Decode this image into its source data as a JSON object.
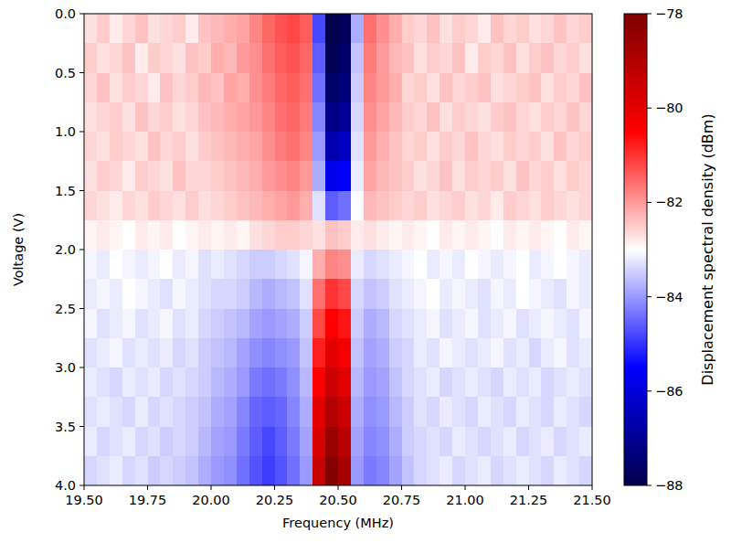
{
  "chart_data": {
    "type": "heatmap",
    "x_label": "Frequency (MHz)",
    "y_label": "Voltage (V)",
    "xlim": [
      19.5,
      21.5
    ],
    "ylim": [
      0,
      4
    ],
    "xticks": [
      {
        "value": 19.5,
        "label": "19.50"
      },
      {
        "value": 19.75,
        "label": "19.75"
      },
      {
        "value": 20.0,
        "label": "20.00"
      },
      {
        "value": 20.25,
        "label": "20.25"
      },
      {
        "value": 20.5,
        "label": "20.50"
      },
      {
        "value": 20.75,
        "label": "20.75"
      },
      {
        "value": 21.0,
        "label": "21.00"
      },
      {
        "value": 21.25,
        "label": "21.25"
      },
      {
        "value": 21.5,
        "label": "21.50"
      }
    ],
    "yticks": [
      {
        "value": 0,
        "label": "0.0"
      },
      {
        "value": 0.5,
        "label": "0.5"
      },
      {
        "value": 1,
        "label": "1.0"
      },
      {
        "value": 1.5,
        "label": "1.5"
      },
      {
        "value": 2,
        "label": "2.0"
      },
      {
        "value": 2.5,
        "label": "2.5"
      },
      {
        "value": 3,
        "label": "3.0"
      },
      {
        "value": 3.5,
        "label": "3.5"
      },
      {
        "value": 4,
        "label": "4.0"
      }
    ],
    "colorbar": {
      "label": "Displacement spectral density (dBm)",
      "range": [
        -88,
        -78
      ],
      "ticks": [
        {
          "value": -78,
          "label": "−78"
        },
        {
          "value": -80,
          "label": "−80"
        },
        {
          "value": -82,
          "label": "−82"
        },
        {
          "value": -84,
          "label": "−84"
        },
        {
          "value": -86,
          "label": "−86"
        },
        {
          "value": -88,
          "label": "−88"
        }
      ]
    },
    "x": [
      19.525,
      19.575,
      19.625,
      19.675,
      19.725,
      19.775,
      19.825,
      19.875,
      19.925,
      19.975,
      20.025,
      20.075,
      20.125,
      20.175,
      20.225,
      20.275,
      20.325,
      20.375,
      20.425,
      20.475,
      20.525,
      20.575,
      20.625,
      20.675,
      20.725,
      20.775,
      20.825,
      20.875,
      20.925,
      20.975,
      21.025,
      21.075,
      21.125,
      21.175,
      21.225,
      21.275,
      21.325,
      21.375,
      21.425,
      21.475
    ],
    "y": [
      0.125,
      0.375,
      0.625,
      0.875,
      1.125,
      1.375,
      1.625,
      1.875,
      2.125,
      2.375,
      2.625,
      2.875,
      3.125,
      3.375,
      3.625,
      3.875
    ],
    "values": [
      [
        -82.7,
        -82.5,
        -82.8,
        -82.6,
        -82.4,
        -82.7,
        -82.6,
        -82.5,
        -82.8,
        -82.4,
        -82.3,
        -82.2,
        -82.1,
        -81.8,
        -81.5,
        -81.3,
        -81.2,
        -81.4,
        -84.8,
        -88.0,
        -87.8,
        -83.8,
        -81.6,
        -81.9,
        -82.2,
        -82.5,
        -82.6,
        -82.4,
        -82.7,
        -82.5,
        -82.6,
        -82.8,
        -82.4,
        -82.6,
        -82.5,
        -82.7,
        -82.6,
        -82.4,
        -82.6,
        -82.5
      ],
      [
        -82.5,
        -82.7,
        -82.6,
        -82.4,
        -82.8,
        -82.5,
        -82.6,
        -82.7,
        -82.4,
        -82.5,
        -82.2,
        -82.3,
        -82.0,
        -81.9,
        -81.6,
        -81.4,
        -81.3,
        -81.5,
        -84.6,
        -87.9,
        -87.6,
        -83.6,
        -81.7,
        -82.0,
        -82.3,
        -82.4,
        -82.7,
        -82.5,
        -82.6,
        -82.4,
        -82.8,
        -82.5,
        -82.6,
        -82.4,
        -82.7,
        -82.5,
        -82.4,
        -82.6,
        -82.5,
        -82.7
      ],
      [
        -82.6,
        -82.4,
        -82.7,
        -82.5,
        -82.6,
        -82.8,
        -82.4,
        -82.6,
        -82.5,
        -82.3,
        -82.4,
        -82.1,
        -82.2,
        -81.9,
        -81.7,
        -81.5,
        -81.4,
        -81.6,
        -84.4,
        -87.6,
        -87.4,
        -83.5,
        -81.8,
        -82.0,
        -82.2,
        -82.6,
        -82.5,
        -82.7,
        -82.4,
        -82.6,
        -82.5,
        -82.4,
        -82.7,
        -82.6,
        -82.5,
        -82.4,
        -82.7,
        -82.5,
        -82.6,
        -82.4
      ],
      [
        -82.7,
        -82.6,
        -82.5,
        -82.7,
        -82.4,
        -82.6,
        -82.5,
        -82.7,
        -82.6,
        -82.4,
        -82.3,
        -82.2,
        -82.1,
        -82.0,
        -81.8,
        -81.6,
        -81.5,
        -81.7,
        -84.2,
        -87.2,
        -87.0,
        -83.4,
        -81.9,
        -82.1,
        -82.3,
        -82.5,
        -82.6,
        -82.4,
        -82.7,
        -82.5,
        -82.6,
        -82.7,
        -82.5,
        -82.4,
        -82.6,
        -82.7,
        -82.5,
        -82.6,
        -82.4,
        -82.6
      ],
      [
        -82.6,
        -82.7,
        -82.5,
        -82.6,
        -82.7,
        -82.4,
        -82.6,
        -82.5,
        -82.7,
        -82.5,
        -82.4,
        -82.3,
        -82.2,
        -82.1,
        -81.9,
        -81.7,
        -81.6,
        -81.8,
        -84.0,
        -86.6,
        -86.4,
        -83.3,
        -82.0,
        -82.2,
        -82.4,
        -82.6,
        -82.5,
        -82.7,
        -82.5,
        -82.6,
        -82.4,
        -82.6,
        -82.7,
        -82.5,
        -82.6,
        -82.5,
        -82.7,
        -82.4,
        -82.6,
        -82.5
      ],
      [
        -82.7,
        -82.5,
        -82.6,
        -82.8,
        -82.5,
        -82.6,
        -82.7,
        -82.4,
        -82.6,
        -82.6,
        -82.5,
        -82.4,
        -82.3,
        -82.2,
        -82.0,
        -81.9,
        -81.8,
        -82.0,
        -83.8,
        -85.8,
        -85.6,
        -83.2,
        -82.1,
        -82.3,
        -82.4,
        -82.5,
        -82.7,
        -82.6,
        -82.4,
        -82.7,
        -82.5,
        -82.6,
        -82.5,
        -82.7,
        -82.4,
        -82.6,
        -82.5,
        -82.7,
        -82.5,
        -82.6
      ],
      [
        -82.6,
        -82.7,
        -82.8,
        -82.6,
        -82.7,
        -82.5,
        -82.6,
        -82.7,
        -82.5,
        -82.7,
        -82.6,
        -82.5,
        -82.4,
        -82.3,
        -82.2,
        -82.1,
        -82.0,
        -82.2,
        -83.3,
        -84.6,
        -84.4,
        -83.0,
        -82.3,
        -82.4,
        -82.5,
        -82.6,
        -82.5,
        -82.7,
        -82.6,
        -82.5,
        -82.7,
        -82.6,
        -82.8,
        -82.5,
        -82.6,
        -82.7,
        -82.5,
        -82.6,
        -82.7,
        -82.6
      ],
      [
        -82.9,
        -82.8,
        -82.9,
        -83.0,
        -82.8,
        -82.9,
        -82.8,
        -83.0,
        -82.9,
        -82.8,
        -82.9,
        -82.8,
        -82.9,
        -82.7,
        -82.6,
        -82.5,
        -82.5,
        -82.6,
        -82.7,
        -82.4,
        -82.5,
        -82.8,
        -82.7,
        -82.8,
        -82.9,
        -82.8,
        -82.9,
        -83.0,
        -82.8,
        -82.9,
        -82.8,
        -82.9,
        -83.0,
        -82.8,
        -82.9,
        -82.8,
        -82.9,
        -83.0,
        -82.8,
        -82.9
      ],
      [
        -83.1,
        -83.2,
        -83.0,
        -83.1,
        -83.2,
        -83.1,
        -83.0,
        -83.2,
        -83.1,
        -83.3,
        -83.2,
        -83.3,
        -83.4,
        -83.5,
        -83.5,
        -83.4,
        -83.3,
        -83.1,
        -82.2,
        -81.8,
        -81.9,
        -83.2,
        -83.4,
        -83.3,
        -83.2,
        -83.1,
        -83.0,
        -83.2,
        -83.1,
        -83.2,
        -83.0,
        -83.1,
        -83.2,
        -83.1,
        -83.0,
        -83.2,
        -83.1,
        -83.0,
        -83.1,
        -83.2
      ],
      [
        -83.2,
        -83.1,
        -83.2,
        -83.0,
        -83.1,
        -83.2,
        -83.3,
        -83.1,
        -83.2,
        -83.3,
        -83.4,
        -83.4,
        -83.5,
        -83.7,
        -83.8,
        -83.7,
        -83.6,
        -83.3,
        -81.6,
        -81.0,
        -81.2,
        -83.4,
        -83.6,
        -83.5,
        -83.3,
        -83.2,
        -83.1,
        -83.0,
        -83.2,
        -83.1,
        -83.2,
        -83.3,
        -83.1,
        -83.2,
        -83.0,
        -83.1,
        -83.2,
        -83.3,
        -83.1,
        -83.2
      ],
      [
        -83.1,
        -83.3,
        -83.2,
        -83.1,
        -83.3,
        -83.2,
        -83.1,
        -83.3,
        -83.2,
        -83.4,
        -83.5,
        -83.6,
        -83.7,
        -83.9,
        -84.0,
        -83.9,
        -83.8,
        -83.5,
        -81.2,
        -80.5,
        -80.7,
        -83.5,
        -83.8,
        -83.7,
        -83.4,
        -83.3,
        -83.2,
        -83.1,
        -83.3,
        -83.2,
        -83.1,
        -83.3,
        -83.2,
        -83.1,
        -83.3,
        -83.2,
        -83.1,
        -83.2,
        -83.3,
        -83.1
      ],
      [
        -83.3,
        -83.2,
        -83.1,
        -83.3,
        -83.2,
        -83.3,
        -83.2,
        -83.4,
        -83.3,
        -83.5,
        -83.6,
        -83.7,
        -83.9,
        -84.1,
        -84.2,
        -84.1,
        -84.0,
        -83.6,
        -80.8,
        -80.0,
        -80.3,
        -83.6,
        -83.9,
        -83.8,
        -83.5,
        -83.4,
        -83.2,
        -83.3,
        -83.1,
        -83.2,
        -83.3,
        -83.2,
        -83.1,
        -83.3,
        -83.2,
        -83.4,
        -83.2,
        -83.1,
        -83.3,
        -83.2
      ],
      [
        -83.2,
        -83.3,
        -83.4,
        -83.2,
        -83.3,
        -83.2,
        -83.4,
        -83.3,
        -83.4,
        -83.5,
        -83.7,
        -83.8,
        -84.0,
        -84.3,
        -84.4,
        -84.3,
        -84.1,
        -83.7,
        -80.4,
        -79.5,
        -79.9,
        -83.7,
        -84.0,
        -83.9,
        -83.6,
        -83.4,
        -83.3,
        -83.2,
        -83.4,
        -83.3,
        -83.2,
        -83.3,
        -83.4,
        -83.2,
        -83.3,
        -83.2,
        -83.4,
        -83.3,
        -83.2,
        -83.3
      ],
      [
        -83.3,
        -83.2,
        -83.3,
        -83.4,
        -83.2,
        -83.4,
        -83.3,
        -83.4,
        -83.5,
        -83.6,
        -83.8,
        -83.9,
        -84.2,
        -84.5,
        -84.6,
        -84.5,
        -84.2,
        -83.8,
        -80.0,
        -79.0,
        -79.5,
        -83.8,
        -84.1,
        -84.0,
        -83.7,
        -83.5,
        -83.3,
        -83.4,
        -83.2,
        -83.3,
        -83.4,
        -83.2,
        -83.3,
        -83.4,
        -83.2,
        -83.3,
        -83.4,
        -83.2,
        -83.3,
        -83.4
      ],
      [
        -83.2,
        -83.4,
        -83.3,
        -83.2,
        -83.4,
        -83.3,
        -83.5,
        -83.4,
        -83.5,
        -83.7,
        -83.9,
        -84.0,
        -84.3,
        -84.6,
        -84.8,
        -84.6,
        -84.3,
        -83.9,
        -79.7,
        -78.5,
        -79.1,
        -83.9,
        -84.2,
        -84.1,
        -83.8,
        -83.5,
        -83.4,
        -83.3,
        -83.4,
        -83.2,
        -83.3,
        -83.4,
        -83.3,
        -83.2,
        -83.4,
        -83.3,
        -83.2,
        -83.4,
        -83.3,
        -83.2
      ],
      [
        -83.4,
        -83.3,
        -83.2,
        -83.4,
        -83.3,
        -83.5,
        -83.4,
        -83.5,
        -83.6,
        -83.8,
        -84.0,
        -84.1,
        -84.4,
        -84.7,
        -84.9,
        -84.7,
        -84.4,
        -84.0,
        -79.4,
        -78.1,
        -78.8,
        -84.0,
        -84.3,
        -84.2,
        -83.9,
        -83.6,
        -83.4,
        -83.3,
        -83.2,
        -83.4,
        -83.3,
        -83.2,
        -83.4,
        -83.3,
        -83.2,
        -83.3,
        -83.4,
        -83.2,
        -83.3,
        -83.4
      ]
    ]
  }
}
